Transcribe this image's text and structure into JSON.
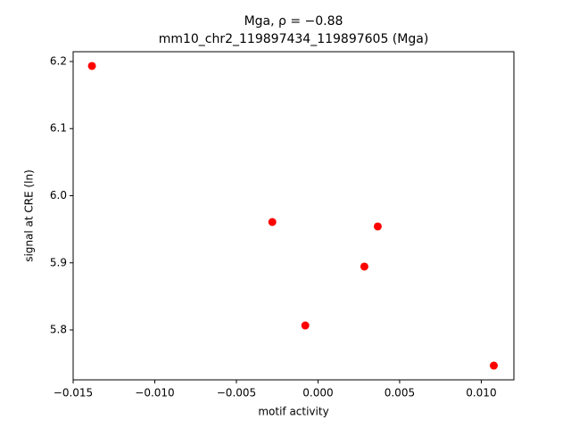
{
  "chart_data": {
    "type": "scatter",
    "title": "Mga, ρ = −0.88",
    "subtitle": "mm10_chr2_119897434_119897605 (Mga)",
    "x_label": "motif activity",
    "y_label": "signal at CRE (ln)",
    "color": "#ff0000",
    "x": [
      -0.01385,
      -0.0028,
      -0.00078,
      0.00284,
      0.00366,
      0.01077
    ],
    "values": [
      6.1934,
      5.9608,
      5.8066,
      5.8944,
      5.9542,
      5.7468
    ],
    "xlim": [
      -0.015,
      0.012
    ],
    "ylim": [
      5.7256,
      6.2146
    ],
    "xticks": [
      {
        "value": -0.015,
        "label": "−0.015"
      },
      {
        "value": -0.01,
        "label": "−0.010"
      },
      {
        "value": -0.005,
        "label": "−0.005"
      },
      {
        "value": 0,
        "label": "0.000"
      },
      {
        "value": 0.005,
        "label": "0.005"
      },
      {
        "value": 0.01,
        "label": "0.010"
      }
    ],
    "yticks": [
      5.8,
      5.9,
      {
        "value": 6,
        "label": "6.0"
      },
      6.1,
      6.2
    ]
  }
}
